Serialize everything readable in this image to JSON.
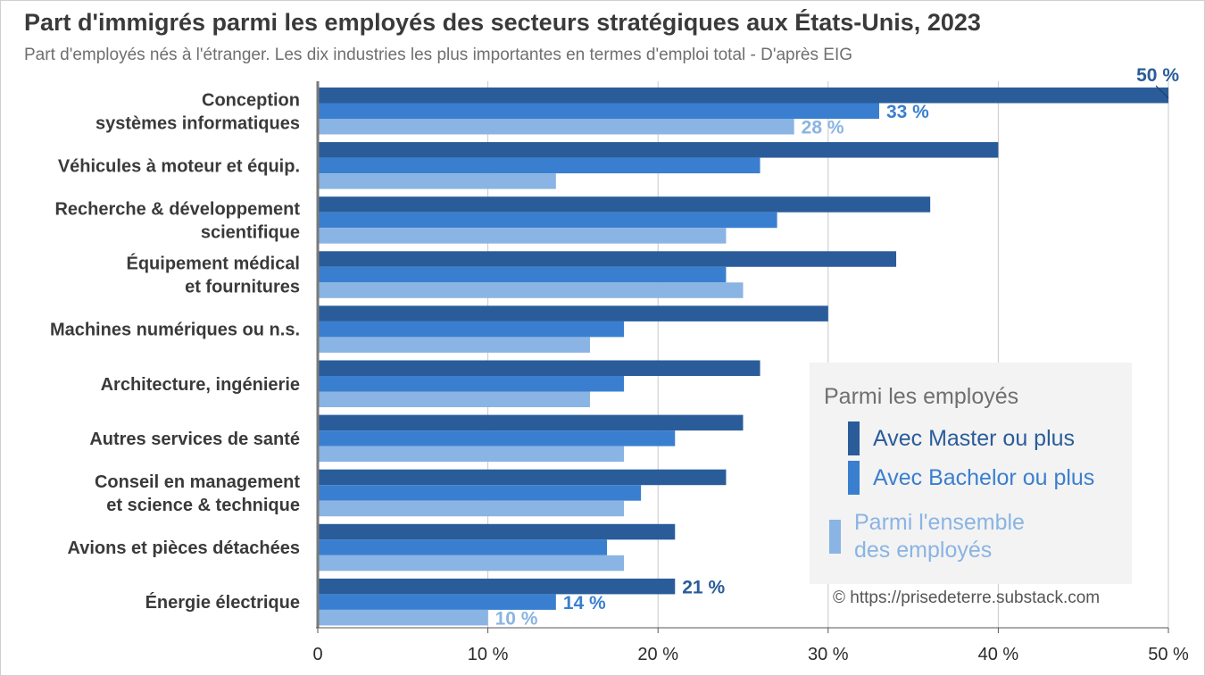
{
  "title": "Part d'immigrés parmi les employés des secteurs stratégiques aux États-Unis, 2023",
  "subtitle": "Part d'employés nés à l'étranger. Les dix industries les plus importantes en termes d'emploi total  -  D'après EIG",
  "legend": {
    "title": "Parmi les employés",
    "items": [
      {
        "label": "Avec Master ou plus",
        "color": "#2A5C9A"
      },
      {
        "label": "Avec Bachelor ou plus",
        "color": "#3A7FCF"
      },
      {
        "label_line1": "Parmi l'ensemble",
        "label_line2": "des employés",
        "color": "#8AB4E3"
      }
    ]
  },
  "credit": "© https://prisedeterre.substack.com",
  "chart_data": {
    "type": "bar",
    "orientation": "horizontal",
    "xlim": [
      0,
      50
    ],
    "xticks": [
      {
        "value": 0,
        "label": "0"
      },
      {
        "value": 10,
        "label": "10 %"
      },
      {
        "value": 20,
        "label": "20 %"
      },
      {
        "value": 30,
        "label": "30 %"
      },
      {
        "value": 40,
        "label": "40 %"
      },
      {
        "value": 50,
        "label": "50 %"
      }
    ],
    "grid": true,
    "categories": [
      {
        "lines": [
          "Conception",
          "systèmes informatiques"
        ]
      },
      {
        "lines": [
          "Véhicules à moteur et équip."
        ]
      },
      {
        "lines": [
          "Recherche & développement",
          "scientifique"
        ]
      },
      {
        "lines": [
          "Équipement médical",
          "et fournitures"
        ]
      },
      {
        "lines": [
          "Machines numériques ou n.s."
        ]
      },
      {
        "lines": [
          "Architecture, ingénierie"
        ]
      },
      {
        "lines": [
          "Autres services de santé"
        ]
      },
      {
        "lines": [
          "Conseil en management",
          "et science & technique"
        ]
      },
      {
        "lines": [
          "Avions et pièces détachées"
        ]
      },
      {
        "lines": [
          "Énergie électrique"
        ]
      }
    ],
    "series": [
      {
        "name": "Avec Master ou plus",
        "color": "#2A5C9A",
        "values": [
          50,
          40,
          36,
          34,
          30,
          26,
          25,
          24,
          21,
          21
        ]
      },
      {
        "name": "Avec Bachelor ou plus",
        "color": "#3A7FCF",
        "values": [
          33,
          26,
          27,
          24,
          18,
          18,
          21,
          19,
          17,
          14
        ]
      },
      {
        "name": "Parmi l'ensemble des employés",
        "color": "#8AB4E3",
        "values": [
          28,
          14,
          24,
          25,
          16,
          16,
          18,
          18,
          18,
          10
        ]
      }
    ],
    "data_labels": [
      {
        "category": 0,
        "series": 0,
        "text": "50 %"
      },
      {
        "category": 0,
        "series": 1,
        "text": "33 %"
      },
      {
        "category": 0,
        "series": 2,
        "text": "28 %"
      },
      {
        "category": 9,
        "series": 0,
        "text": "21 %"
      },
      {
        "category": 9,
        "series": 1,
        "text": "14 %"
      },
      {
        "category": 9,
        "series": 2,
        "text": "10 %"
      }
    ]
  }
}
